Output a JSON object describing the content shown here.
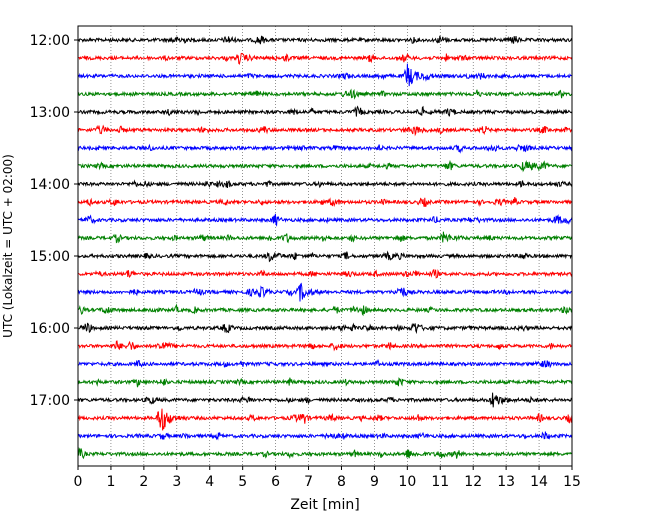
{
  "chart_data": {
    "type": "line",
    "title": "",
    "xlabel": "Zeit  [min]",
    "ylabel": "UTC (Lokalzeit = UTC + 02:00)",
    "xlim": [
      0,
      15
    ],
    "x_ticks": [
      "0",
      "1",
      "2",
      "3",
      "4",
      "5",
      "6",
      "7",
      "8",
      "9",
      "10",
      "11",
      "12",
      "13",
      "14",
      "15"
    ],
    "y_ticks": [
      "12:00",
      "13:00",
      "14:00",
      "15:00",
      "16:00",
      "17:00"
    ],
    "grid": "vertical-dotted",
    "trace_color_cycle": [
      "#000000",
      "#ff0000",
      "#0000ff",
      "#008000"
    ],
    "trace_start_times": [
      "12:00",
      "12:15",
      "12:30",
      "12:45",
      "13:00",
      "13:15",
      "13:30",
      "13:45",
      "14:00",
      "14:15",
      "14:30",
      "14:45",
      "15:00",
      "15:15",
      "15:30",
      "15:45",
      "16:00",
      "16:15",
      "16:30",
      "16:45",
      "17:00",
      "17:15",
      "17:30",
      "17:45"
    ],
    "events": [
      {
        "trace": 2,
        "minute": 10.0,
        "amplitude": 12
      },
      {
        "trace": 14,
        "minute": 6.75,
        "amplitude": 9
      },
      {
        "trace": 21,
        "minute": 2.5,
        "amplitude": 16
      },
      {
        "trace": 20,
        "minute": 12.6,
        "amplitude": 8
      },
      {
        "trace": 12,
        "minute": 5.8,
        "amplitude": 5
      },
      {
        "trace": 1,
        "minute": 4.9,
        "amplitude": 5
      },
      {
        "trace": 5,
        "minute": 10.2,
        "amplitude": 4
      },
      {
        "trace": 11,
        "minute": 11.1,
        "amplitude": 5
      },
      {
        "trace": 7,
        "minute": 13.5,
        "amplitude": 4
      },
      {
        "trace": 10,
        "minute": 14.5,
        "amplitude": 4
      },
      {
        "trace": 16,
        "minute": 10.2,
        "amplitude": 4
      },
      {
        "trace": 17,
        "minute": 2.5,
        "amplitude": 5
      },
      {
        "trace": 22,
        "minute": 7.6,
        "amplitude": 3
      },
      {
        "trace": 23,
        "minute": 10.0,
        "amplitude": 4
      }
    ]
  }
}
